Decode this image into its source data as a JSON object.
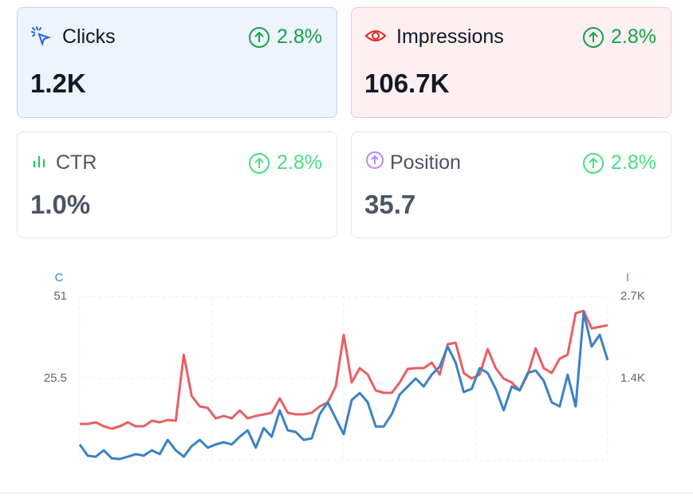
{
  "cards": [
    {
      "label": "Clicks",
      "change": "2.8%",
      "value": "1.2K"
    },
    {
      "label": "Impressions",
      "change": "2.8%",
      "value": "106.7K"
    },
    {
      "label": "CTR",
      "change": "2.8%",
      "value": "1.0%"
    },
    {
      "label": "Position",
      "change": "2.8%",
      "value": "35.7"
    }
  ],
  "chart_data": {
    "type": "line",
    "ylabel": "C",
    "y2label": "I",
    "ylim": [
      0,
      51
    ],
    "yticks": [
      25.5,
      51
    ],
    "y2lim": [
      0,
      2700
    ],
    "y2ticks": [
      {
        "value": 1350,
        "label": "1.4K"
      },
      {
        "value": 2700,
        "label": "2.7K"
      }
    ],
    "grid": true,
    "series": [
      {
        "color": "#e85f64",
        "axis": "y2",
        "values": [
          603,
          603,
          629,
          563,
          524,
          563,
          629,
          563,
          563,
          655,
          629,
          668,
          655,
          1742,
          1061,
          891,
          865,
          694,
          734,
          694,
          825,
          694,
          734,
          760,
          786,
          1022,
          786,
          760,
          760,
          786,
          891,
          956,
          1218,
          2070,
          1284,
          1520,
          1415,
          1153,
          1114,
          1114,
          1284,
          1507,
          1520,
          1520,
          1611,
          1415,
          1913,
          1939,
          1441,
          1349,
          1415,
          1834,
          1520,
          1349,
          1284,
          1153,
          1415,
          1847,
          1520,
          1441,
          1677,
          1742,
          2424,
          2463,
          2175,
          2201,
          2227
        ]
      },
      {
        "color": "#3b82c4",
        "axis": "y",
        "values": [
          5.0,
          1.5,
          1.2,
          3.2,
          0.7,
          0.5,
          1.2,
          2.0,
          1.5,
          3.2,
          2.0,
          6.4,
          3.2,
          1.2,
          4.5,
          6.4,
          4.0,
          5.0,
          5.7,
          5.0,
          7.4,
          9.4,
          4.0,
          10.1,
          7.4,
          15.6,
          9.4,
          8.9,
          6.4,
          6.9,
          14.4,
          18.1,
          13.1,
          8.2,
          18.8,
          21.0,
          18.1,
          10.6,
          10.6,
          14.4,
          20.5,
          23.0,
          25.5,
          23.0,
          26.7,
          29.2,
          35.4,
          30.4,
          21.3,
          22.3,
          28.7,
          27.2,
          22.3,
          15.6,
          23.0,
          21.8,
          27.2,
          28.0,
          24.8,
          18.1,
          16.8,
          26.7,
          16.8,
          46.0,
          35.4,
          39.1,
          31.2
        ]
      }
    ]
  }
}
